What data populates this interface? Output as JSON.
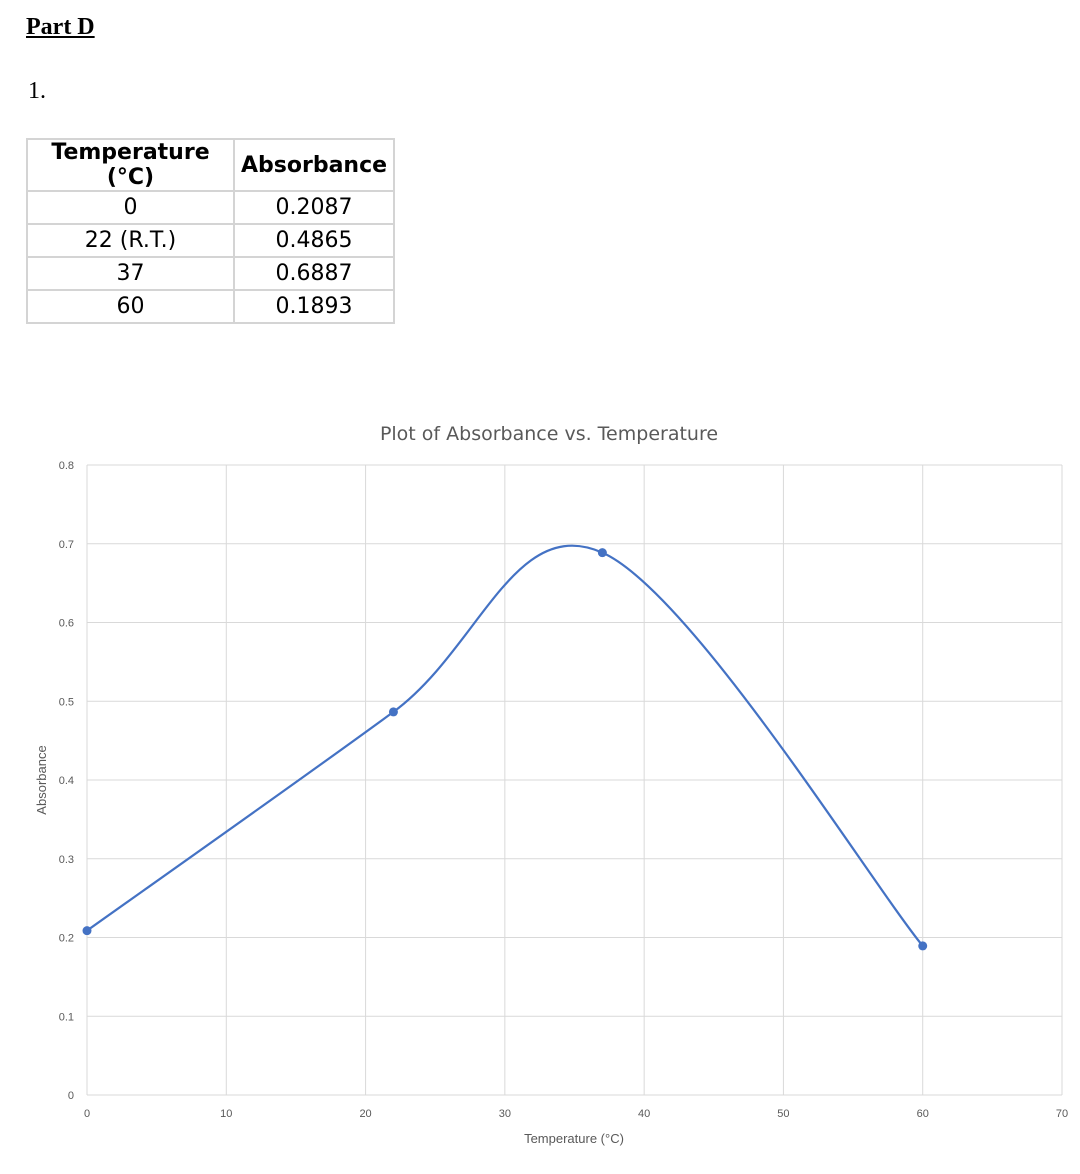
{
  "document": {
    "heading": "Part D",
    "question_number": "1."
  },
  "table": {
    "headers": [
      "Temperature (°C)",
      "Absorbance"
    ],
    "rows": [
      [
        "0",
        "0.2087"
      ],
      [
        "22 (R.T.)",
        "0.4865"
      ],
      [
        "37",
        "0.6887"
      ],
      [
        "60",
        "0.1893"
      ]
    ]
  },
  "chart_data": {
    "type": "scatter",
    "title": "Plot of Absorbance vs. Temperature",
    "xlabel": "Temperature (°C)",
    "ylabel": "Absorbance",
    "xlim": [
      0,
      70
    ],
    "ylim": [
      0,
      0.8
    ],
    "x_ticks": [
      "0",
      "10",
      "20",
      "30",
      "40",
      "50",
      "60",
      "70"
    ],
    "y_ticks": [
      "0",
      "0.1",
      "0.2",
      "0.3",
      "0.4",
      "0.5",
      "0.6",
      "0.7",
      "0.8"
    ],
    "grid": true,
    "line": "smoothed",
    "color": "#4472c4",
    "series": [
      {
        "x": [
          0,
          22,
          37,
          60
        ],
        "y": [
          0.2087,
          0.4865,
          0.6887,
          0.1893
        ]
      }
    ]
  }
}
